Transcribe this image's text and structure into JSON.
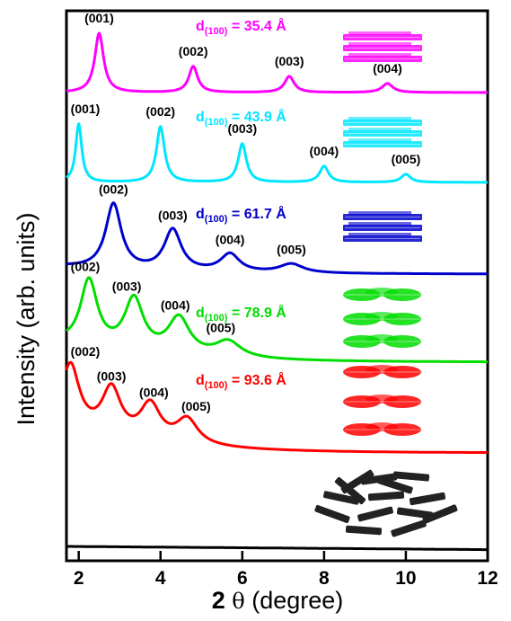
{
  "chart_data": {
    "type": "line",
    "title": "",
    "xlabel_main": "2 ",
    "xlabel_theta": "θ",
    "xlabel_unit": " (degree)",
    "ylabel": "Intensity (arb. units)",
    "xlim": [
      1.7,
      12
    ],
    "x_ticks": [
      "2",
      "4",
      "6",
      "8",
      "10",
      "12"
    ],
    "grid": false,
    "legend": "none",
    "series": [
      {
        "color": "#ff00ff",
        "d_text": "d",
        "d_sub": "(100)",
        "d_value": " = 35.4 Å",
        "peaks": [
          {
            "label": "(001)",
            "x": 2.5
          },
          {
            "label": "(002)",
            "x": 4.8
          },
          {
            "label": "(003)",
            "x": 7.15
          },
          {
            "label": "(004)",
            "x": 9.55
          }
        ],
        "icon": "stacked-bars-icon"
      },
      {
        "color": "#00e6ff",
        "d_text": "d",
        "d_sub": "(100)",
        "d_value": " = 43.9 Å",
        "peaks": [
          {
            "label": "(001)",
            "x": 2.0
          },
          {
            "label": "(002)",
            "x": 4.0
          },
          {
            "label": "(003)",
            "x": 6.0
          },
          {
            "label": "(004)",
            "x": 8.0
          },
          {
            "label": "(005)",
            "x": 10.0
          }
        ],
        "icon": "stacked-bars-icon"
      },
      {
        "color": "#0000cc",
        "d_text": "d",
        "d_sub": "(100)",
        "d_value": " = 61.7 Å",
        "peaks": [
          {
            "label": "(002)",
            "x": 2.85
          },
          {
            "label": "(003)",
            "x": 4.3
          },
          {
            "label": "(004)",
            "x": 5.7
          },
          {
            "label": "(005)",
            "x": 7.2
          }
        ],
        "icon": "stacked-bars-icon"
      },
      {
        "color": "#00dd00",
        "d_text": "d",
        "d_sub": "(100)",
        "d_value": " = 78.9 Å",
        "peaks": [
          {
            "label": "(002)",
            "x": 2.25
          },
          {
            "label": "(003)",
            "x": 3.35
          },
          {
            "label": "(004)",
            "x": 4.45
          },
          {
            "label": "(005)",
            "x": 5.65
          }
        ],
        "icon": "stacked-discs-icon"
      },
      {
        "color": "#ff0000",
        "d_text": "d",
        "d_sub": "(100)",
        "d_value": " = 93.6 Å",
        "peaks": [
          {
            "label": "(002)",
            "x": 1.8
          },
          {
            "label": "(003)",
            "x": 2.8
          },
          {
            "label": "(004)",
            "x": 3.75
          },
          {
            "label": "(005)",
            "x": 4.65
          }
        ],
        "icon": "stacked-discs-icon"
      },
      {
        "color": "#000000",
        "peaks": [],
        "icon": "random-rods-icon"
      }
    ]
  }
}
